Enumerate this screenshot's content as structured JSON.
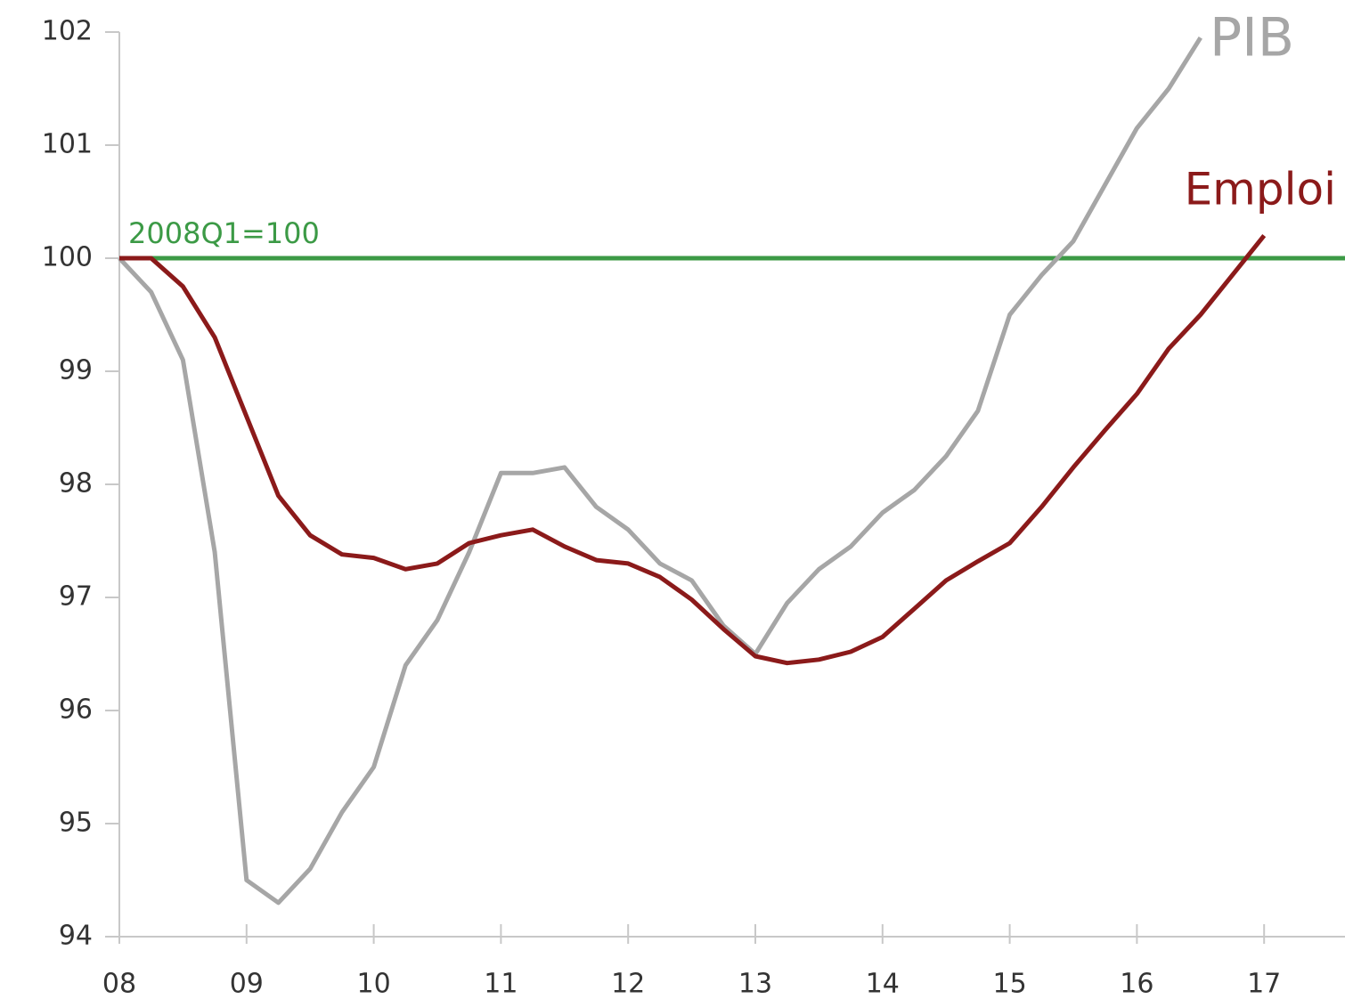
{
  "chart_data": {
    "type": "line",
    "x": [
      2008,
      2008.25,
      2008.5,
      2008.75,
      2009,
      2009.25,
      2009.5,
      2009.75,
      2010,
      2010.25,
      2010.5,
      2010.75,
      2011,
      2011.25,
      2011.5,
      2011.75,
      2012,
      2012.25,
      2012.5,
      2012.75,
      2013,
      2013.25,
      2013.5,
      2013.75,
      2014,
      2014.25,
      2014.5,
      2014.75,
      2015,
      2015.25,
      2015.5,
      2015.75,
      2016,
      2016.25,
      2016.5,
      2016.75,
      2017
    ],
    "series": [
      {
        "name": "PIB",
        "color": "#a6a6a6",
        "values": [
          100,
          99.7,
          99.1,
          97.4,
          94.5,
          94.3,
          94.6,
          95.1,
          95.5,
          96.4,
          96.8,
          97.4,
          98.1,
          98.1,
          98.15,
          97.8,
          97.6,
          97.3,
          97.15,
          96.75,
          96.5,
          96.95,
          97.25,
          97.45,
          97.75,
          97.95,
          98.25,
          98.65,
          99.5,
          99.85,
          100.15,
          100.65,
          101.15,
          101.5,
          101.95,
          null,
          null
        ]
      },
      {
        "name": "Emploi",
        "color": "#8b1a1a",
        "values": [
          100,
          100,
          99.75,
          99.3,
          98.6,
          97.9,
          97.55,
          97.38,
          97.35,
          97.25,
          97.3,
          97.48,
          97.55,
          97.6,
          97.45,
          97.33,
          97.3,
          97.18,
          96.98,
          96.72,
          96.48,
          96.42,
          96.45,
          96.52,
          96.65,
          96.9,
          97.15,
          97.32,
          97.48,
          97.8,
          98.15,
          98.48,
          98.8,
          99.2,
          99.5,
          99.85,
          100.2
        ]
      }
    ],
    "reference_line": {
      "value": 100,
      "label": "2008Q1=100",
      "color": "#3c9a46"
    },
    "xlim": [
      2008,
      2017.636
    ],
    "xticks": [
      {
        "value": 2008,
        "label": "08"
      },
      {
        "value": 2009,
        "label": "09"
      },
      {
        "value": 2010,
        "label": "10"
      },
      {
        "value": 2011,
        "label": "11"
      },
      {
        "value": 2012,
        "label": "12"
      },
      {
        "value": 2013,
        "label": "13"
      },
      {
        "value": 2014,
        "label": "14"
      },
      {
        "value": 2015,
        "label": "15"
      },
      {
        "value": 2016,
        "label": "16"
      },
      {
        "value": 2017,
        "label": "17"
      }
    ],
    "ylim": [
      94,
      102
    ],
    "yticks": [
      94,
      95,
      96,
      97,
      98,
      99,
      100,
      101,
      102
    ],
    "grid": false
  }
}
